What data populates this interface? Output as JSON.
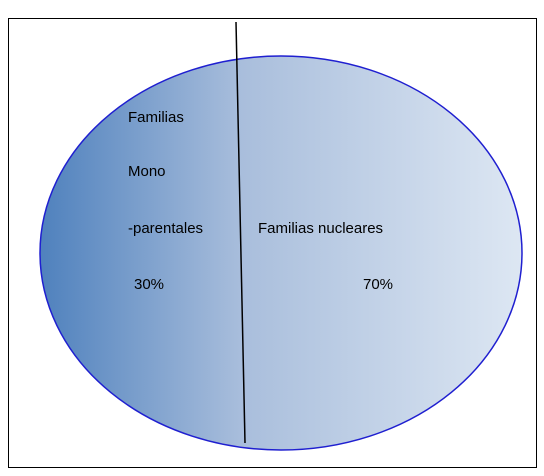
{
  "regions": [
    {
      "lines": [
        "Familias",
        "Mono",
        "-parentales"
      ],
      "share": "30%"
    },
    {
      "lines": [
        "Familias nucleares"
      ],
      "share": "70%"
    }
  ]
}
